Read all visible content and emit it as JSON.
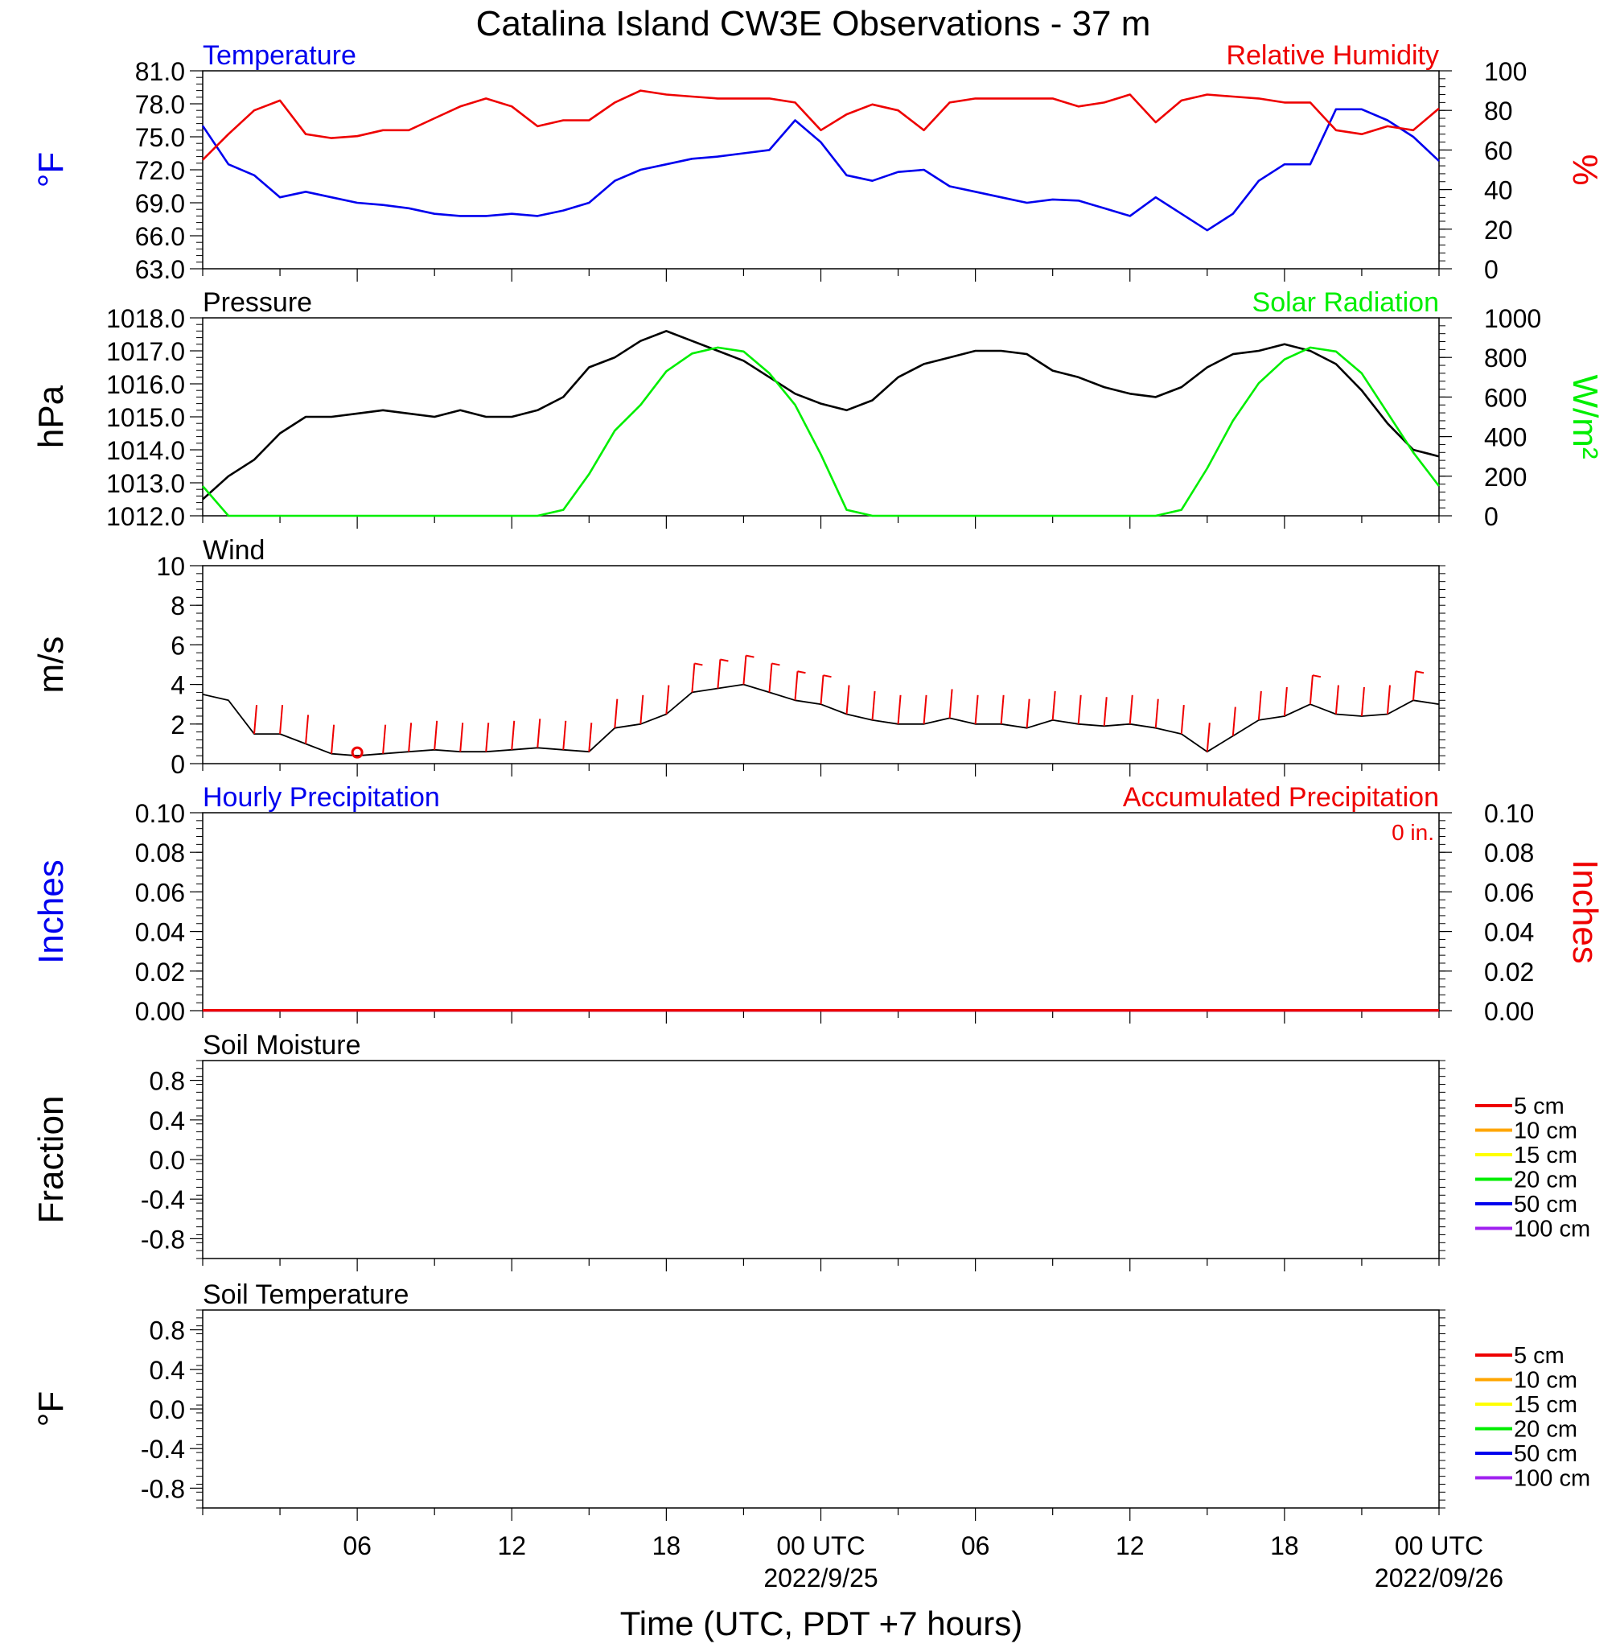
{
  "figure_title": "Catalina Island CW3E Observations - 37 m",
  "x_axis": {
    "label": "Time (UTC, PDT +7 hours)",
    "ticks": [
      {
        "label": "06",
        "sub": ""
      },
      {
        "label": "12",
        "sub": ""
      },
      {
        "label": "18",
        "sub": ""
      },
      {
        "label": "00 UTC",
        "sub": "2022/9/25"
      },
      {
        "label": "06",
        "sub": ""
      },
      {
        "label": "12",
        "sub": ""
      },
      {
        "label": "18",
        "sub": ""
      },
      {
        "label": "00 UTC",
        "sub": "2022/09/26"
      }
    ]
  },
  "colors": {
    "temperature": "#0000ee",
    "humidity": "#ee0000",
    "pressure": "#000000",
    "solar": "#00ee00",
    "wind": "#000000",
    "barb": "#ee0000",
    "hourly_precip": "#0000ee",
    "accum_precip": "#ee0000"
  },
  "chart_data": [
    {
      "type": "line",
      "panel": "temperature_humidity",
      "title_left": "Temperature",
      "title_right": "Relative Humidity",
      "ylabel_left": "°F",
      "ylabel_right": "%",
      "ylim_left": [
        63,
        81
      ],
      "ylim_right": [
        0,
        100
      ],
      "yticks_left": [
        "81.0",
        "78.0",
        "75.0",
        "72.0",
        "69.0",
        "66.0",
        "63.0"
      ],
      "yticks_right": [
        "100",
        "80",
        "60",
        "40",
        "20",
        "0"
      ],
      "x_hours": [
        0,
        1,
        2,
        3,
        4,
        5,
        6,
        7,
        8,
        9,
        10,
        11,
        12,
        13,
        14,
        15,
        16,
        17,
        18,
        19,
        20,
        21,
        22,
        23,
        24,
        25,
        26,
        27,
        28,
        29,
        30,
        31,
        32,
        33,
        34,
        35,
        36,
        37,
        38,
        39,
        40,
        41,
        42,
        43,
        44,
        45,
        46,
        47,
        48
      ],
      "series": [
        {
          "name": "Temperature",
          "axis": "left",
          "values": [
            76.0,
            72.5,
            71.5,
            69.5,
            70.0,
            69.5,
            69.0,
            68.8,
            68.5,
            68.0,
            67.8,
            67.8,
            68.0,
            67.8,
            68.3,
            69.0,
            71.0,
            72.0,
            72.5,
            73.0,
            73.2,
            73.5,
            73.8,
            76.5,
            74.5,
            71.5,
            71.0,
            71.8,
            72.0,
            70.5,
            70.0,
            69.5,
            69.0,
            69.3,
            69.2,
            68.5,
            67.8,
            69.5,
            68.0,
            66.5,
            68.0,
            71.0,
            72.5,
            72.5,
            77.5,
            77.5,
            76.5,
            75.0,
            72.8
          ]
        },
        {
          "name": "Relative Humidity",
          "axis": "right",
          "values": [
            55,
            68,
            80,
            85,
            68,
            66,
            67,
            70,
            70,
            76,
            82,
            86,
            82,
            72,
            75,
            75,
            84,
            90,
            88,
            87,
            86,
            86,
            86,
            84,
            70,
            78,
            83,
            80,
            70,
            84,
            86,
            86,
            86,
            86,
            82,
            84,
            88,
            74,
            85,
            88,
            87,
            86,
            84,
            84,
            70,
            68,
            72,
            70,
            81
          ]
        }
      ]
    },
    {
      "type": "line",
      "panel": "pressure_solar",
      "title_left": "Pressure",
      "title_right": "Solar Radiation",
      "ylabel_left": "hPa",
      "ylabel_right": "W/m²",
      "ylim_left": [
        1012,
        1018
      ],
      "ylim_right": [
        0,
        1000
      ],
      "yticks_left": [
        "1018.0",
        "1017.0",
        "1016.0",
        "1015.0",
        "1014.0",
        "1013.0",
        "1012.0"
      ],
      "yticks_right": [
        "1000",
        "800",
        "600",
        "400",
        "200",
        "0"
      ],
      "x_hours": [
        0,
        1,
        2,
        3,
        4,
        5,
        6,
        7,
        8,
        9,
        10,
        11,
        12,
        13,
        14,
        15,
        16,
        17,
        18,
        19,
        20,
        21,
        22,
        23,
        24,
        25,
        26,
        27,
        28,
        29,
        30,
        31,
        32,
        33,
        34,
        35,
        36,
        37,
        38,
        39,
        40,
        41,
        42,
        43,
        44,
        45,
        46,
        47,
        48
      ],
      "series": [
        {
          "name": "Pressure",
          "axis": "left",
          "values": [
            1012.5,
            1013.2,
            1013.7,
            1014.5,
            1015.0,
            1015.0,
            1015.1,
            1015.2,
            1015.1,
            1015.0,
            1015.2,
            1015.0,
            1015.0,
            1015.2,
            1015.6,
            1016.5,
            1016.8,
            1017.3,
            1017.6,
            1017.3,
            1017.0,
            1016.7,
            1016.2,
            1015.7,
            1015.4,
            1015.2,
            1015.5,
            1016.2,
            1016.6,
            1016.8,
            1017.0,
            1017.0,
            1016.9,
            1016.4,
            1016.2,
            1015.9,
            1015.7,
            1015.6,
            1015.9,
            1016.5,
            1016.9,
            1017.0,
            1017.2,
            1017.0,
            1016.6,
            1015.8,
            1014.8,
            1014.0,
            1013.8
          ]
        },
        {
          "name": "Solar Radiation",
          "axis": "right",
          "values": [
            150,
            0,
            0,
            0,
            0,
            0,
            0,
            0,
            0,
            0,
            0,
            0,
            0,
            0,
            30,
            210,
            430,
            560,
            730,
            820,
            850,
            830,
            720,
            560,
            310,
            30,
            0,
            0,
            0,
            0,
            0,
            0,
            0,
            0,
            0,
            0,
            0,
            0,
            30,
            240,
            480,
            670,
            790,
            850,
            830,
            720,
            520,
            320,
            150
          ]
        }
      ]
    },
    {
      "type": "line",
      "panel": "wind",
      "title_left": "Wind",
      "ylabel_left": "m/s",
      "ylim_left": [
        0,
        10
      ],
      "yticks_left": [
        "10",
        "8",
        "6",
        "4",
        "2",
        "0"
      ],
      "x_hours": [
        0,
        1,
        2,
        3,
        4,
        5,
        6,
        7,
        8,
        9,
        10,
        11,
        12,
        13,
        14,
        15,
        16,
        17,
        18,
        19,
        20,
        21,
        22,
        23,
        24,
        25,
        26,
        27,
        28,
        29,
        30,
        31,
        32,
        33,
        34,
        35,
        36,
        37,
        38,
        39,
        40,
        41,
        42,
        43,
        44,
        45,
        46,
        47,
        48
      ],
      "series": [
        {
          "name": "Wind Speed",
          "axis": "left",
          "values": [
            3.5,
            3.2,
            1.5,
            1.5,
            1.0,
            0.5,
            0.4,
            0.5,
            0.6,
            0.7,
            0.6,
            0.6,
            0.7,
            0.8,
            0.7,
            0.6,
            1.8,
            2.0,
            2.5,
            3.6,
            3.8,
            4.0,
            3.6,
            3.2,
            3.0,
            2.5,
            2.2,
            2.0,
            2.0,
            2.3,
            2.0,
            2.0,
            1.8,
            2.2,
            2.0,
            1.9,
            2.0,
            1.8,
            1.5,
            0.6,
            1.4,
            2.2,
            2.4,
            3.0,
            2.5,
            2.4,
            2.5,
            3.2,
            3.0
          ]
        }
      ]
    },
    {
      "type": "line",
      "panel": "precipitation",
      "title_left": "Hourly Precipitation",
      "title_right": "Accumulated Precipitation",
      "annotation": "0 in.",
      "ylabel_left": "Inches",
      "ylabel_right": "Inches",
      "ylim_left": [
        0,
        0.1
      ],
      "ylim_right": [
        0,
        0.1
      ],
      "yticks_left": [
        "0.10",
        "0.08",
        "0.06",
        "0.04",
        "0.02",
        "0.00"
      ],
      "yticks_right": [
        "0.10",
        "0.08",
        "0.06",
        "0.04",
        "0.02",
        "0.00"
      ],
      "x_hours": [
        0,
        48
      ],
      "series": [
        {
          "name": "Hourly Precipitation",
          "axis": "left",
          "values": [
            0,
            0
          ]
        },
        {
          "name": "Accumulated Precipitation",
          "axis": "right",
          "values": [
            0,
            0
          ]
        }
      ]
    },
    {
      "type": "line",
      "panel": "soil_moisture",
      "title_left": "Soil Moisture",
      "ylabel_left": "Fraction",
      "ylim_left": [
        -1,
        1
      ],
      "yticks_left": [
        "0.8",
        "0.4",
        "0.0",
        "-0.4",
        "-0.8"
      ],
      "legend": [
        {
          "label": "5 cm",
          "color": "#ee0000"
        },
        {
          "label": "10 cm",
          "color": "#ffa500"
        },
        {
          "label": "15 cm",
          "color": "#ffff00"
        },
        {
          "label": "20 cm",
          "color": "#00ee00"
        },
        {
          "label": "50 cm",
          "color": "#0000ee"
        },
        {
          "label": "100 cm",
          "color": "#a020f0"
        }
      ],
      "series": []
    },
    {
      "type": "line",
      "panel": "soil_temperature",
      "title_left": "Soil Temperature",
      "ylabel_left": "°F",
      "ylim_left": [
        -1,
        1
      ],
      "yticks_left": [
        "0.8",
        "0.4",
        "0.0",
        "-0.4",
        "-0.8"
      ],
      "legend": [
        {
          "label": "5 cm",
          "color": "#ee0000"
        },
        {
          "label": "10 cm",
          "color": "#ffa500"
        },
        {
          "label": "15 cm",
          "color": "#ffff00"
        },
        {
          "label": "20 cm",
          "color": "#00ee00"
        },
        {
          "label": "50 cm",
          "color": "#0000ee"
        },
        {
          "label": "100 cm",
          "color": "#a020f0"
        }
      ],
      "series": []
    }
  ]
}
